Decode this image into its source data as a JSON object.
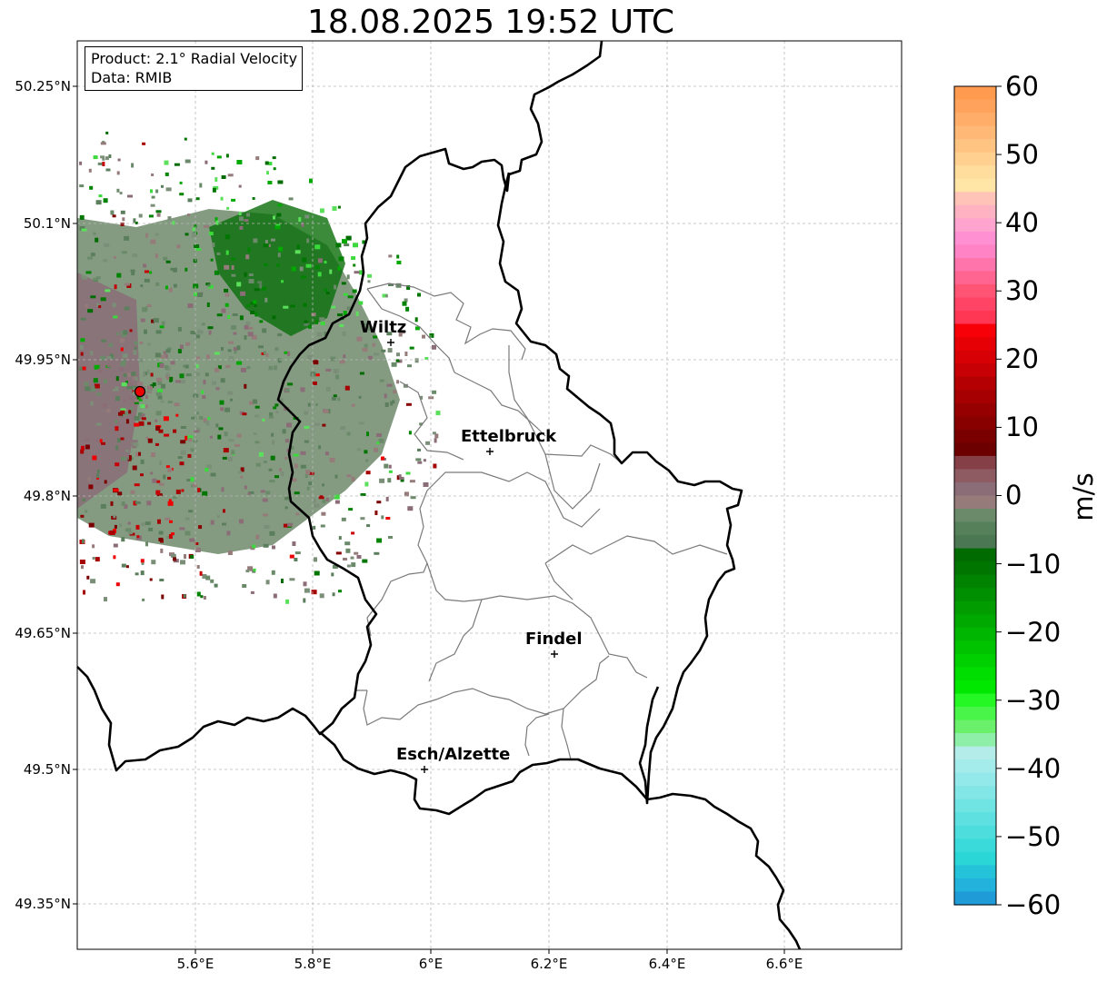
{
  "title": "18.08.2025 19:52 UTC",
  "info_box": {
    "product": "Product: 2.1° Radial Velocity",
    "data": "Data: RMIB"
  },
  "cities": [
    {
      "name": "Wiltz",
      "lon": 5.935,
      "lat": 49.966
    },
    {
      "name": "Ettelbruck",
      "lon": 6.105,
      "lat": 49.85
    },
    {
      "name": "Findel",
      "lon": 6.21,
      "lat": 49.627
    },
    {
      "name": "Esch/Alzette",
      "lon": 5.99,
      "lat": 49.5
    }
  ],
  "radar_site": {
    "lon": 5.505,
    "lat": 49.914
  },
  "map_extent": {
    "lon_min": 5.4,
    "lon_max": 6.8,
    "lat_min": 49.3,
    "lat_max": 50.3
  },
  "lat_ticks": [
    "50.25°N",
    "50.1°N",
    "49.95°N",
    "49.8°N",
    "49.65°N",
    "49.5°N",
    "49.35°N"
  ],
  "lon_ticks": [
    "5.6°E",
    "5.8°E",
    "6°E",
    "6.2°E",
    "6.4°E",
    "6.6°E"
  ],
  "colorbar": {
    "unit": "m/s",
    "tick_labels": [
      "60",
      "50",
      "40",
      "30",
      "20",
      "10",
      "0",
      "−10",
      "−20",
      "−30",
      "−40",
      "−50",
      "−60"
    ],
    "colors": [
      "#ff9a4f",
      "#ffa35c",
      "#ffad69",
      "#ffb875",
      "#ffc482",
      "#ffd08f",
      "#ffdd9c",
      "#ffe6a6",
      "#ffc3b7",
      "#ffb3c2",
      "#ffa4ce",
      "#ff91d2",
      "#ff83c5",
      "#ff74aa",
      "#ff6590",
      "#ff5473",
      "#ff4466",
      "#ff3654",
      "#f70008",
      "#e60006",
      "#d60005",
      "#c60004",
      "#b50003",
      "#a60002",
      "#970001",
      "#880000",
      "#7a0000",
      "#6c0000",
      "#853f47",
      "#8e5b63",
      "#8b6d77",
      "#957b7a",
      "#6a8a69",
      "#55805a",
      "#4b7852",
      "#006b00",
      "#007600",
      "#008300",
      "#008f00",
      "#009c00",
      "#00a900",
      "#00b600",
      "#00c300",
      "#00d000",
      "#00dd00",
      "#00e700",
      "#24f724",
      "#4af54a",
      "#6bf06b",
      "#8ef0a8",
      "#b3ece8",
      "#a4ebeb",
      "#93e9e9",
      "#82e6e6",
      "#70e3e3",
      "#5ee0e0",
      "#4ddddd",
      "#3bdada",
      "#2ad6d6",
      "#25c3d9",
      "#22b2db",
      "#1f9cd8"
    ]
  }
}
